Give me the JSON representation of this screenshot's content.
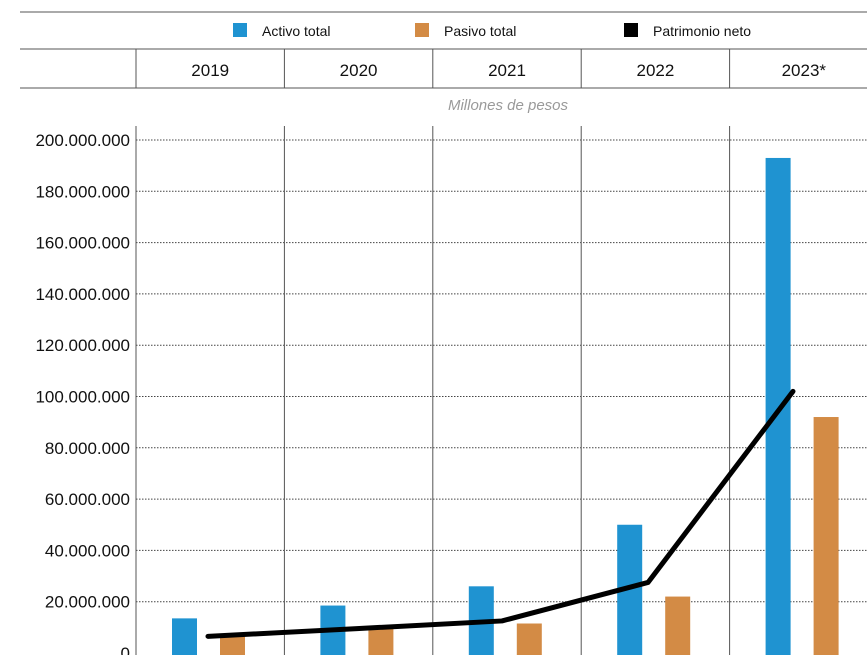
{
  "chart_data": {
    "type": "bar",
    "title": "",
    "unit_label": "Millones de pesos",
    "xlabel": "",
    "ylabel": "",
    "categories": [
      "2019",
      "2020",
      "2021",
      "2022",
      "2023*"
    ],
    "series": [
      {
        "name": "Activo total",
        "type": "bar",
        "color": "#1f93d1",
        "values": [
          13500000,
          18500000,
          26000000,
          50000000,
          193000000
        ]
      },
      {
        "name": "Pasivo total",
        "type": "bar",
        "color": "#d38b45",
        "values": [
          7000000,
          9500000,
          11500000,
          22000000,
          92000000
        ]
      },
      {
        "name": "Patrimonio neto",
        "type": "line",
        "color": "#000000",
        "values": [
          6500000,
          9500000,
          12500000,
          27500000,
          102000000
        ]
      }
    ],
    "ylim": [
      0,
      200000000
    ],
    "yticks": [
      0,
      20000000,
      40000000,
      60000000,
      80000000,
      100000000,
      120000000,
      140000000,
      160000000,
      180000000,
      200000000
    ],
    "ytick_labels": [
      "0",
      "20.000.000",
      "40.000.000",
      "60.000.000",
      "80.000.000",
      "100.000.000",
      "120.000.000",
      "140.000.000",
      "160.000.000",
      "180.000.000",
      "200.000.000"
    ],
    "grid": true,
    "legend_position": "top"
  }
}
